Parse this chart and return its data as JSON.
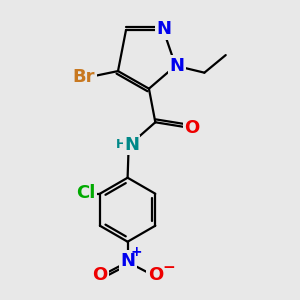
{
  "background_color": "#e8e8e8",
  "line_color": "#000000",
  "line_width": 1.6,
  "figsize": [
    3.0,
    3.0
  ],
  "dpi": 100,
  "atom_bg": "#e8e8e8",
  "colors": {
    "N": "#0000ee",
    "Br": "#c87820",
    "O": "#ee0000",
    "Cl": "#00aa00",
    "NH": "#008888",
    "N_no2": "#0000ee"
  },
  "font_size_atom": 13,
  "font_size_small": 9
}
